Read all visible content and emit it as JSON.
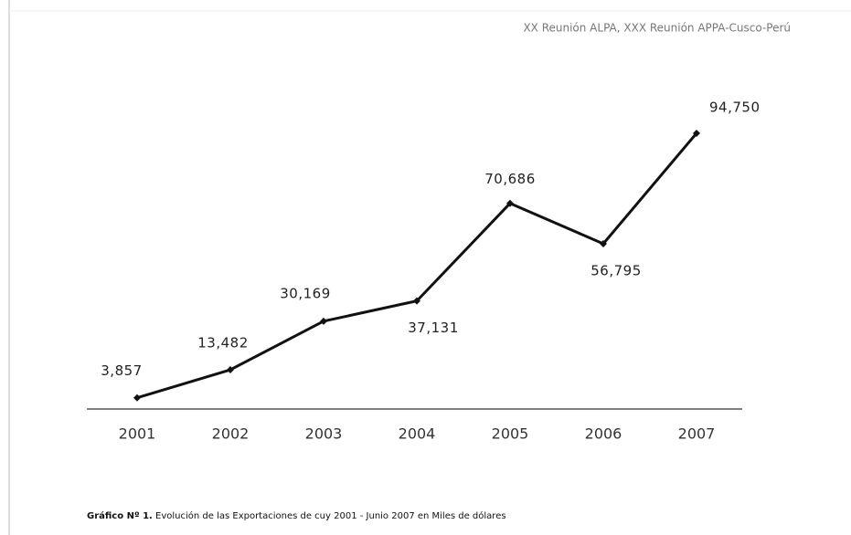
{
  "header": "XX Reunión ALPA, XXX Reunión APPA-Cusco-Perú",
  "chart_data": {
    "type": "line",
    "categories": [
      "2001",
      "2002",
      "2003",
      "2004",
      "2005",
      "2006",
      "2007"
    ],
    "values": [
      3857,
      13482,
      30169,
      37131,
      70686,
      56795,
      94750
    ],
    "value_labels": [
      "3,857",
      "13,482",
      "30,169",
      "37,131",
      "70,686",
      "56,795",
      "94,750"
    ],
    "color": "#111111"
  },
  "caption": {
    "label": "Gráfico Nº 1.",
    "text": "Evolución de las Exportaciones de cuy 2001 - Junio 2007 en Miles de dólares"
  }
}
